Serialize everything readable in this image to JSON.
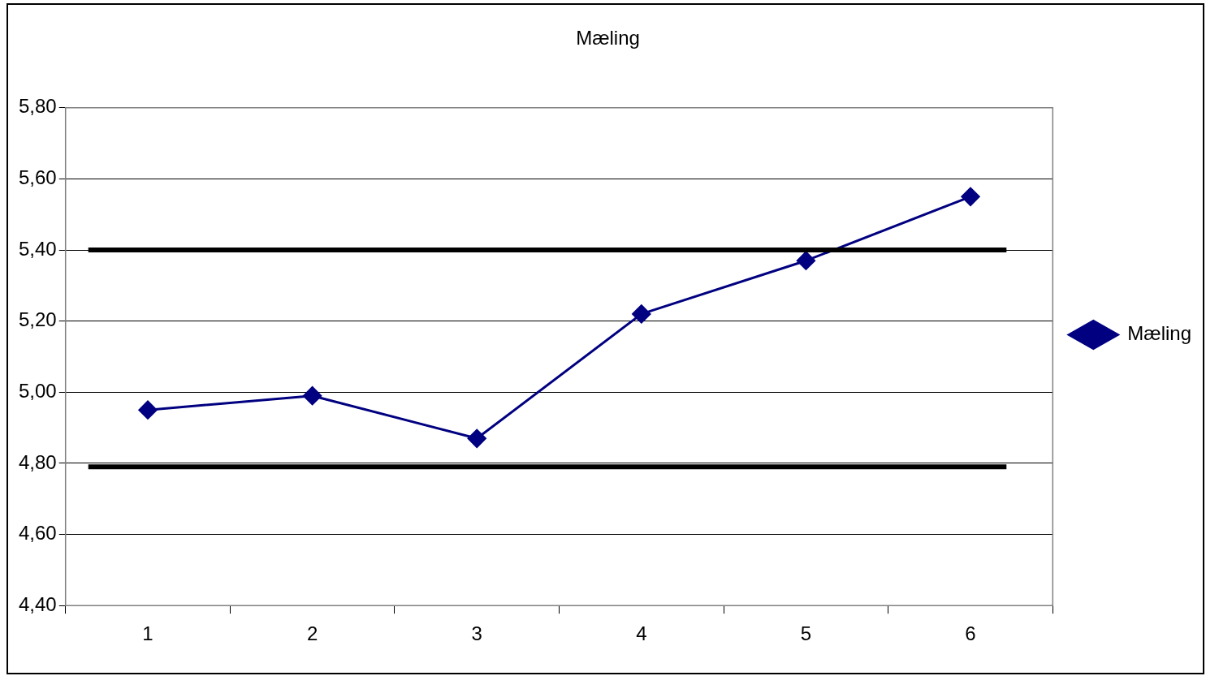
{
  "chart_data": {
    "type": "line",
    "title": "Mæling",
    "categories": [
      "1",
      "2",
      "3",
      "4",
      "5",
      "6"
    ],
    "series": [
      {
        "name": "Mæling",
        "color": "#000080",
        "values": [
          4.95,
          4.99,
          4.87,
          5.22,
          5.37,
          5.55
        ]
      }
    ],
    "ylim": [
      4.4,
      5.8
    ],
    "yticks": [
      {
        "value": 4.4,
        "label": "4,40"
      },
      {
        "value": 4.6,
        "label": "4,60"
      },
      {
        "value": 4.8,
        "label": "4,80"
      },
      {
        "value": 5.0,
        "label": "5,00"
      },
      {
        "value": 5.2,
        "label": "5,20"
      },
      {
        "value": 5.4,
        "label": "5,40"
      },
      {
        "value": 5.6,
        "label": "5,60"
      },
      {
        "value": 5.8,
        "label": "5,80"
      }
    ],
    "ref_lines": [
      {
        "axis": "y",
        "value": 5.4,
        "color": "#000000"
      },
      {
        "axis": "y",
        "value": 4.79,
        "color": "#000000"
      }
    ],
    "grid": "y",
    "legend": "right",
    "marker": "diamond",
    "line_style": "solid"
  }
}
